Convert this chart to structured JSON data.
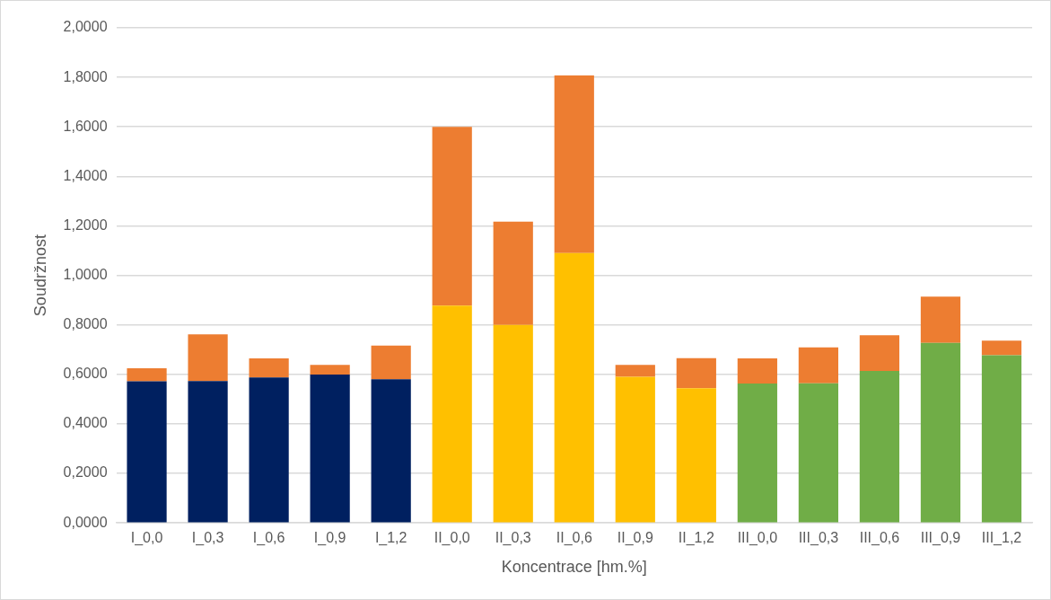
{
  "chart_data": {
    "type": "bar",
    "stacked": true,
    "xlabel": "Koncentrace [hm.%]",
    "ylabel": "Soudržnost",
    "categories": [
      "I_0,0",
      "I_0,3",
      "I_0,6",
      "I_0,9",
      "I_1,2",
      "II_0,0",
      "II_0,3",
      "II_0,6",
      "II_0,9",
      "II_1,2",
      "III_0,0",
      "III_0,3",
      "III_0,6",
      "III_0,9",
      "III_1,2"
    ],
    "series": [
      {
        "colors": [
          "#002060",
          "#002060",
          "#002060",
          "#002060",
          "#002060",
          "#ffc000",
          "#ffc000",
          "#ffc000",
          "#ffc000",
          "#ffc000",
          "#70ad47",
          "#70ad47",
          "#70ad47",
          "#70ad47",
          "#70ad47"
        ],
        "values": [
          0.572,
          0.573,
          0.588,
          0.599,
          0.58,
          0.878,
          0.8,
          1.09,
          0.59,
          0.544,
          0.563,
          0.564,
          0.614,
          0.727,
          0.677
        ]
      },
      {
        "color": "#ed7d31",
        "values": [
          0.053,
          0.189,
          0.077,
          0.039,
          0.136,
          0.722,
          0.417,
          0.718,
          0.048,
          0.122,
          0.102,
          0.145,
          0.144,
          0.187,
          0.059
        ]
      }
    ],
    "ylim": [
      0,
      2
    ],
    "yticks": [
      {
        "value": 0,
        "label": "0,0000"
      },
      {
        "value": 0.2,
        "label": "0,2000"
      },
      {
        "value": 0.4,
        "label": "0,4000"
      },
      {
        "value": 0.6,
        "label": "0,6000"
      },
      {
        "value": 0.8,
        "label": "0,8000"
      },
      {
        "value": 1,
        "label": "1,0000"
      },
      {
        "value": 1.2,
        "label": "1,2000"
      },
      {
        "value": 1.4,
        "label": "1,4000"
      },
      {
        "value": 1.6,
        "label": "1,6000"
      },
      {
        "value": 1.8,
        "label": "1,8000"
      },
      {
        "value": 2,
        "label": "2,0000"
      }
    ],
    "grid": "y",
    "legend": false
  }
}
